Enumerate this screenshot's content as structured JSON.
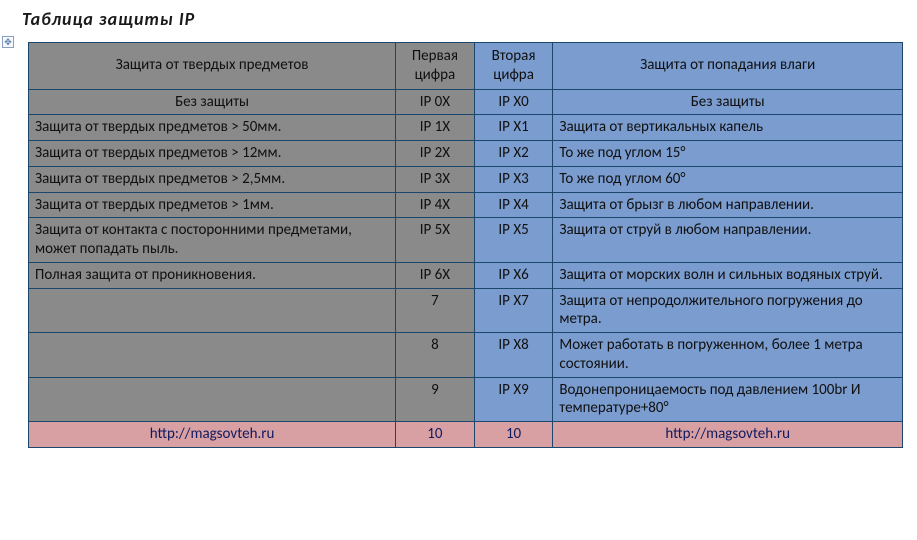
{
  "title": "Таблица  защиты  IP",
  "colors": {
    "gray": "#8a8a8a",
    "blue": "#7a9ccf",
    "pink": "#d9a0a4",
    "border": "#1a476b",
    "text": "#101010",
    "link": "#0f1a60"
  },
  "font": {
    "family": "Calibri",
    "title_size": 18,
    "cell_size": 15
  },
  "columns": {
    "solid": "Защита от твердых предметов",
    "first_digit": "Первая цифра",
    "second_digit": "Вторая цифра",
    "moisture": "Защита от попадания влаги"
  },
  "subheader": {
    "no_protect_solid": "Без защиты",
    "ip0x": "IP 0X",
    "ipx0": "IP X0",
    "no_protect_moist": "Без защиты"
  },
  "rows": [
    {
      "solid": "Защита от твердых предметов > 50мм.",
      "first": "IP 1X",
      "second": "IP X1",
      "moist": "Защита от вертикальных капель"
    },
    {
      "solid": "Защита от твердых предметов > 12мм.",
      "first": "IP 2X",
      "second": "IP X2",
      "moist": "То же под углом 15°"
    },
    {
      "solid": "Защита от твердых предметов > 2,5мм.",
      "first": "IP 3X",
      "second": "IP X3",
      "moist": "То же под углом 60°"
    },
    {
      "solid": "Защита от твердых предметов > 1мм.",
      "first": "IP 4X",
      "second": "IP X4",
      "moist": "Защита от брызг в любом направлении."
    },
    {
      "solid": "Защита от контакта с посторонними предметами, может попадать пыль.",
      "first": "IP 5X",
      "second": "IP X5",
      "moist": "Защита от струй в любом направлении."
    },
    {
      "solid": "Полная защита от проникновения.",
      "first": "IP 6X",
      "second": "IP X6",
      "moist": "Защита от морских волн и сильных водяных струй."
    },
    {
      "solid": "",
      "first": "7",
      "second": "IP X7",
      "moist": "Защита от непродолжительного погружения до метра."
    },
    {
      "solid": "",
      "first": "8",
      "second": "IP X8",
      "moist": "Может работать в погруженном, более 1 метра состоянии."
    },
    {
      "solid": "",
      "first": "9",
      "second": "IP X9",
      "moist": "Водонепроницаемость под давлением 100br И температуре+80°"
    }
  ],
  "footer": {
    "link_left": "http://magsovteh.ru",
    "ten_a": "10",
    "ten_b": "10",
    "link_right": "http://magsovteh.ru"
  }
}
